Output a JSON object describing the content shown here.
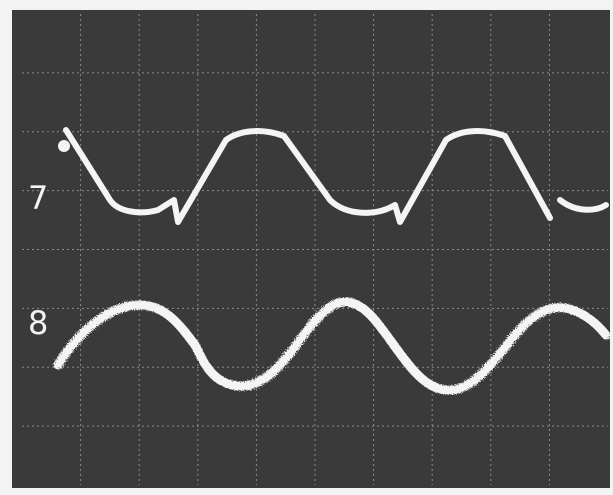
{
  "traces": [
    {
      "label": "7"
    },
    {
      "label": "8"
    }
  ]
}
